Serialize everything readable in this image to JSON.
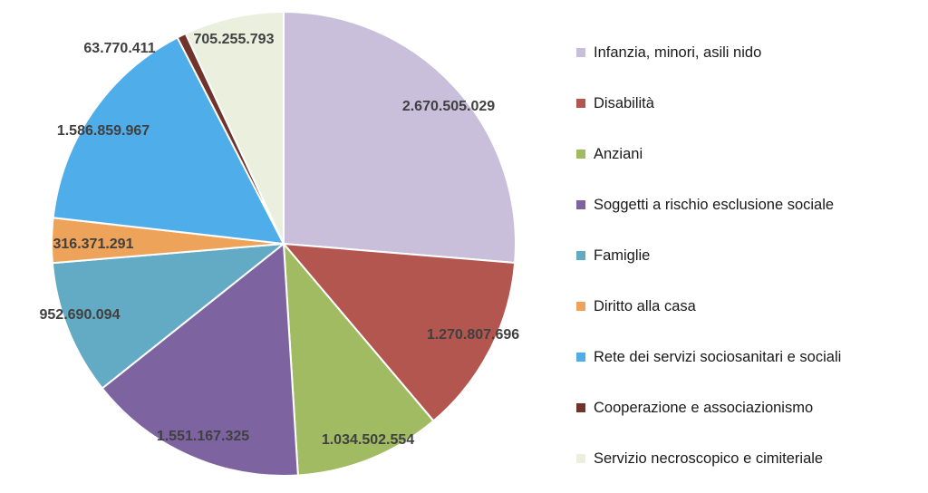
{
  "chart_data": {
    "type": "pie",
    "start_angle_deg": 0,
    "direction": "clockwise",
    "legend_position": "right",
    "categories": [
      "Infanzia, minori, asili nido",
      "Disabilità",
      "Anziani",
      "Soggetti a rischio esclusione sociale",
      "Famiglie",
      "Diritto alla casa",
      "Rete dei servizi sociosanitari e sociali",
      "Cooperazione e associazionismo",
      "Servizio necroscopico e cimiteriale"
    ],
    "values": [
      2670505029,
      1270807696,
      1034502554,
      1551167325,
      952690094,
      316371291,
      1586859967,
      63770411,
      705255793
    ],
    "value_labels": [
      "2.670.505.029",
      "1.270.807.696",
      "1.034.502.554",
      "1.551.167.325",
      "952.690.094",
      "316.371.291",
      "1.586.859.967",
      "63.770.411",
      "705.255.793"
    ],
    "colors": [
      "#c9bfdb",
      "#b3564f",
      "#a1bb63",
      "#7d64a1",
      "#63aac4",
      "#eea35a",
      "#4fadea",
      "#71342a",
      "#ebf0de"
    ]
  }
}
